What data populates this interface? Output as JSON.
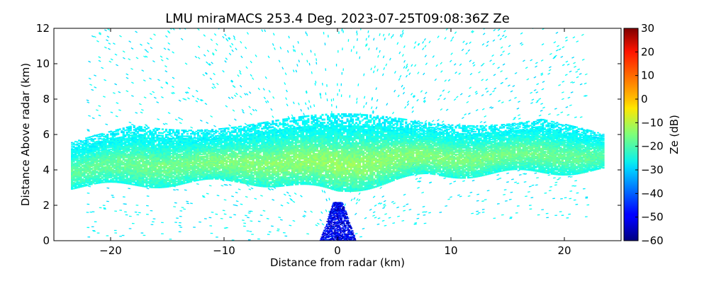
{
  "chart_data": {
    "type": "heatmap",
    "title": "LMU miraMACS 253.4 Deg. 2023-07-25T09:08:36Z  Ze",
    "xlabel": "Distance from radar (km)",
    "ylabel": "Distance Above radar  (km)",
    "xlim": [
      -25,
      25
    ],
    "ylim": [
      0,
      12
    ],
    "xticks": [
      -20,
      -10,
      0,
      10,
      20
    ],
    "xtick_labels": [
      "−20",
      "−10",
      "0",
      "10",
      "20"
    ],
    "yticks": [
      0,
      2,
      4,
      6,
      8,
      10,
      12
    ],
    "ytick_labels": [
      "0",
      "2",
      "4",
      "6",
      "8",
      "10",
      "12"
    ],
    "colorbar": {
      "label": "Ze (dB)",
      "range": [
        -60,
        30
      ],
      "ticks": [
        -60,
        -50,
        -40,
        -30,
        -20,
        -10,
        0,
        10,
        20,
        30
      ],
      "tick_labels": [
        "−60",
        "−50",
        "−40",
        "−30",
        "−20",
        "−10",
        "0",
        "10",
        "20",
        "30"
      ],
      "colormap": "jet"
    },
    "layers": [
      {
        "name": "cloud layer",
        "x_range": [
          -23.5,
          23.5
        ],
        "base_km": 3.5,
        "top_km": 6.8,
        "peak_ze_dB": -13
      },
      {
        "name": "noise near radar",
        "x_range": [
          -1.5,
          1.5
        ],
        "z_range": [
          0,
          2.2
        ],
        "ze_dB": -50
      },
      {
        "name": "sparse clutter aloft",
        "x_range": [
          -22,
          22
        ],
        "z_range": [
          0,
          12
        ],
        "ze_dB": -27
      }
    ]
  }
}
